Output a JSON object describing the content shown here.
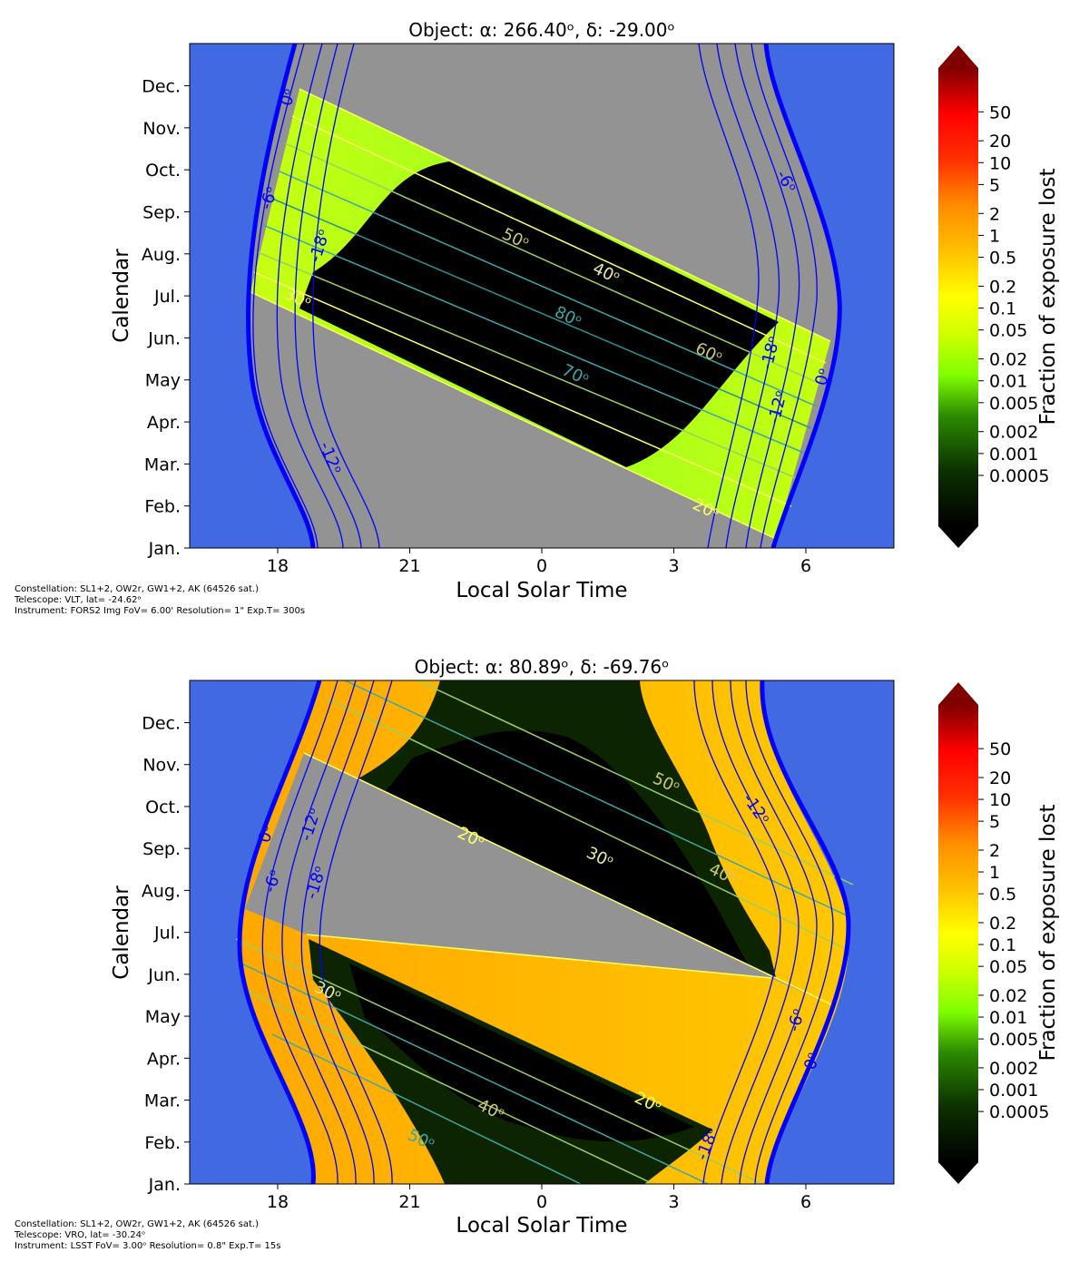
{
  "colors": {
    "twilight_blue": "#4169e1",
    "horizon_line": "#0000ff",
    "below_limit_gray": "#939393",
    "altitude_line_yellow": "#ffff66",
    "altitude_line_teal": "#3aa8a8",
    "no_loss_black": "#000000"
  },
  "colorbar": {
    "label": "Fraction of exposure lost",
    "ticks": [
      "50",
      "20",
      "10",
      "5",
      "2",
      "1",
      "0.5",
      "0.2",
      "0.1",
      "0.05",
      "0.02",
      "0.01",
      "0.005",
      "0.002",
      "0.001",
      "0.0005"
    ],
    "scale": "log",
    "colormap_stops": [
      "#000000",
      "#1a5f00",
      "#7fff00",
      "#ffff00",
      "#ffb000",
      "#ff0000",
      "#800000"
    ]
  },
  "chart_data": [
    {
      "type": "heatmap",
      "title": "Object:   α: 266.40ᵒ, δ: -29.00ᵒ",
      "xlabel": "Local Solar Time",
      "ylabel": "Calendar",
      "x_ticks": [
        "18",
        "21",
        "0",
        "3",
        "6"
      ],
      "y_ticks": [
        "Dec.",
        "Nov.",
        "Oct.",
        "Sep.",
        "Aug.",
        "Jul.",
        "Jun.",
        "May",
        "Apr.",
        "Mar.",
        "Feb.",
        "Jan."
      ],
      "footnote": [
        "Constellation: SL1+2, OW2r, GW1+2, AK (64526 sat.)",
        "Telescope: VLT, lat= -24.62ᵒ",
        "Instrument: FORS2 Img FoV= 6.00' Resolution= 1\" Exp.T= 300s"
      ],
      "horizon_labels": [
        "0ᵒ",
        "-6ᵒ",
        "-12ᵒ",
        "-18ᵒ"
      ],
      "altitude_labels": [
        "20ᵒ",
        "30ᵒ",
        "40ᵒ",
        "50ᵒ",
        "60ᵒ",
        "70ᵒ",
        "80ᵒ"
      ],
      "altitude_labels_shown": [
        "50ᵒ",
        "40ᵒ",
        "80ᵒ",
        "60ᵒ",
        "70ᵒ",
        "20ᵒ",
        "30ᵒ"
      ],
      "twilight_labels_left": [
        "0ᵒ",
        "-6ᵒ",
        "-18ᵒ",
        "-12ᵒ"
      ],
      "twilight_labels_right": [
        "-6ᵒ",
        "-18ᵒ",
        "-12ᵒ",
        "0ᵒ"
      ],
      "dominant_loss": "0.002–0.01"
    },
    {
      "type": "heatmap",
      "title": "Object:   α: 80.89ᵒ, δ: -69.76ᵒ",
      "xlabel": "Local Solar Time",
      "ylabel": "Calendar",
      "x_ticks": [
        "18",
        "21",
        "0",
        "3",
        "6"
      ],
      "y_ticks": [
        "Dec.",
        "Nov.",
        "Oct.",
        "Sep.",
        "Aug.",
        "Jul.",
        "Jun.",
        "May",
        "Apr.",
        "Mar.",
        "Feb.",
        "Jan."
      ],
      "footnote": [
        "Constellation: SL1+2, OW2r, GW1+2, AK (64526 sat.)",
        "Telescope: VRO, lat= -30.24ᵒ",
        "Instrument: LSST FoV= 3.00ᵒ Resolution= 0.8\" Exp.T= 15s"
      ],
      "altitude_labels_shown": [
        "50ᵒ",
        "20ᵒ",
        "30ᵒ",
        "40ᵒ",
        "30ᵒ",
        "40ᵒ",
        "20ᵒ",
        "50ᵒ"
      ],
      "twilight_labels_left": [
        "0ᵒ",
        "-12ᵒ",
        "-6ᵒ",
        "-18ᵒ"
      ],
      "twilight_labels_right": [
        "-12ᵒ",
        "-6ᵒ",
        "0ᵒ",
        "-18ᵒ"
      ],
      "dominant_loss": "0.2–1"
    }
  ]
}
